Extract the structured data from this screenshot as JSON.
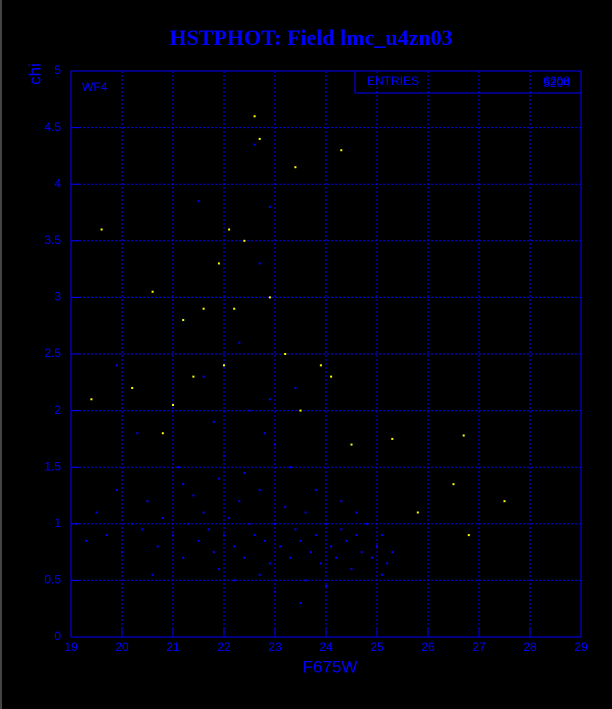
{
  "chart_data": {
    "type": "scatter",
    "title": "HSTPHOT: Field lmc_u4zn03",
    "xlabel": "F675W",
    "ylabel": "chi",
    "annotation": "WF4",
    "stats_label": "ENTRIES",
    "stats_values": [
      "6200",
      "5204"
    ],
    "xlim": [
      19,
      29
    ],
    "ylim": [
      0,
      5
    ],
    "xticks": [
      19,
      20,
      21,
      22,
      23,
      24,
      25,
      26,
      27,
      28,
      29
    ],
    "yticks": [
      0,
      0.5,
      1,
      1.5,
      2,
      2.5,
      3,
      3.5,
      4,
      4.5,
      5
    ],
    "grid": true,
    "series": [
      {
        "color": "#0000ff",
        "x": [
          19.1,
          19.3,
          19.5,
          19.7,
          19.9,
          20.0,
          20.2,
          20.4,
          20.5,
          20.7,
          20.8,
          21.0,
          21.1,
          21.2,
          21.3,
          21.4,
          21.5,
          21.6,
          21.7,
          21.8,
          21.9,
          22.0,
          22.1,
          22.2,
          22.3,
          22.4,
          22.5,
          22.6,
          22.7,
          22.8,
          22.9,
          23.0,
          23.1,
          23.2,
          23.3,
          23.4,
          23.5,
          23.6,
          23.7,
          23.8,
          23.9,
          24.0,
          24.1,
          24.2,
          24.3,
          24.4,
          24.5,
          24.6,
          24.7,
          24.8,
          24.9,
          25.0,
          25.1,
          25.2,
          25.3,
          22.5,
          22.8,
          21.6,
          22.3,
          23.0,
          21.8,
          22.9,
          22.6,
          22.7,
          21.5,
          22.9,
          23.4,
          20.3,
          19.9,
          23.5,
          23.0,
          22.2,
          24.0,
          21.9,
          23.8,
          24.3,
          22.0,
          21.2,
          22.4,
          23.3,
          24.6,
          25.1,
          20.6,
          23.6,
          22.7
        ],
        "values": [
          1.0,
          0.85,
          1.1,
          0.9,
          1.3,
          0.75,
          1.0,
          0.95,
          1.2,
          0.8,
          1.05,
          0.9,
          1.5,
          0.7,
          1.0,
          1.25,
          0.85,
          1.1,
          0.95,
          0.75,
          1.4,
          0.9,
          1.05,
          0.8,
          1.2,
          0.7,
          1.0,
          0.9,
          1.3,
          0.85,
          0.65,
          1.0,
          0.8,
          1.15,
          0.7,
          0.95,
          0.85,
          1.1,
          0.75,
          0.9,
          0.65,
          1.0,
          0.8,
          0.7,
          0.95,
          0.85,
          0.6,
          0.9,
          0.75,
          1.0,
          0.7,
          0.8,
          0.9,
          0.65,
          0.75,
          2.0,
          1.8,
          2.3,
          2.6,
          1.7,
          1.9,
          2.1,
          4.35,
          3.3,
          3.85,
          3.8,
          2.2,
          1.8,
          2.4,
          0.3,
          0.4,
          0.5,
          0.45,
          0.6,
          1.3,
          1.2,
          1.6,
          1.35,
          1.45,
          1.5,
          1.1,
          0.55,
          0.55,
          0.5,
          0.55
        ]
      },
      {
        "color": "#ffff00",
        "x": [
          19.6,
          20.6,
          21.2,
          21.6,
          22.0,
          22.4,
          22.6,
          22.7,
          23.4,
          24.3,
          22.9,
          21.9,
          23.5,
          24.5,
          25.3,
          26.7,
          27.5,
          26.5,
          20.2,
          19.4,
          21.4,
          22.2,
          23.2,
          24.1,
          22.1,
          20.8,
          23.9,
          25.8,
          26.8,
          21.0
        ],
        "values": [
          3.6,
          3.05,
          2.8,
          2.9,
          2.4,
          3.5,
          4.6,
          4.4,
          4.15,
          4.3,
          3.0,
          3.3,
          2.0,
          1.7,
          1.75,
          1.78,
          1.2,
          1.35,
          2.2,
          2.1,
          2.3,
          2.9,
          2.5,
          2.3,
          3.6,
          1.8,
          2.4,
          1.1,
          0.9,
          2.05
        ]
      }
    ]
  }
}
